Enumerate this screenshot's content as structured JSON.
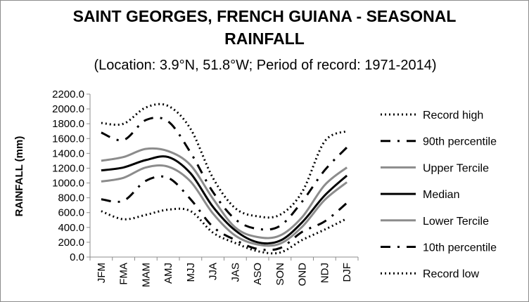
{
  "chart_data": {
    "type": "line",
    "title": "SAINT GEORGES, FRENCH GUIANA - SEASONAL RAINFALL",
    "subtitle": "(Location: 3.9°N, 51.8°W; Period of record: 1971-2014)",
    "xlabel": "",
    "ylabel": "RAINFALL (mm)",
    "ylim": [
      0,
      2200
    ],
    "y_ticks": [
      "0.0",
      "200.0",
      "400.0",
      "600.0",
      "800.0",
      "1000.0",
      "1200.0",
      "1400.0",
      "1600.0",
      "1800.0",
      "2000.0",
      "2200.0"
    ],
    "grid": false,
    "legend_position": "right",
    "categories": [
      "JFM",
      "FMA",
      "MAM",
      "AMJ",
      "MJJ",
      "JJA",
      "JAS",
      "ASO",
      "SON",
      "OND",
      "NDJ",
      "DJF"
    ],
    "series": [
      {
        "name": "Record high",
        "color": "#000000",
        "style": "dotted",
        "values": [
          1810,
          1800,
          2020,
          2040,
          1730,
          1070,
          660,
          550,
          570,
          880,
          1560,
          1700
        ]
      },
      {
        "name": "90th percentile",
        "color": "#000000",
        "style": "dashdot",
        "values": [
          1680,
          1580,
          1850,
          1830,
          1410,
          880,
          510,
          380,
          420,
          750,
          1170,
          1480
        ]
      },
      {
        "name": "Upper Tercile",
        "color": "#8c8c8c",
        "style": "solid",
        "values": [
          1300,
          1350,
          1460,
          1430,
          1240,
          790,
          400,
          270,
          290,
          540,
          970,
          1210
        ]
      },
      {
        "name": "Median",
        "color": "#000000",
        "style": "solid",
        "values": [
          1170,
          1210,
          1310,
          1350,
          1130,
          680,
          360,
          200,
          220,
          470,
          830,
          1100
        ]
      },
      {
        "name": "Lower Tercile",
        "color": "#8c8c8c",
        "style": "solid",
        "values": [
          1020,
          1070,
          1210,
          1220,
          1020,
          590,
          290,
          170,
          180,
          410,
          770,
          1010
        ]
      },
      {
        "name": "10th percentile",
        "color": "#000000",
        "style": "dashdot",
        "values": [
          780,
          760,
          1030,
          1070,
          780,
          410,
          230,
          110,
          120,
          340,
          480,
          730
        ]
      },
      {
        "name": "Record low",
        "color": "#000000",
        "style": "dotted",
        "values": [
          620,
          510,
          570,
          640,
          620,
          330,
          190,
          80,
          60,
          230,
          370,
          520
        ]
      }
    ]
  }
}
